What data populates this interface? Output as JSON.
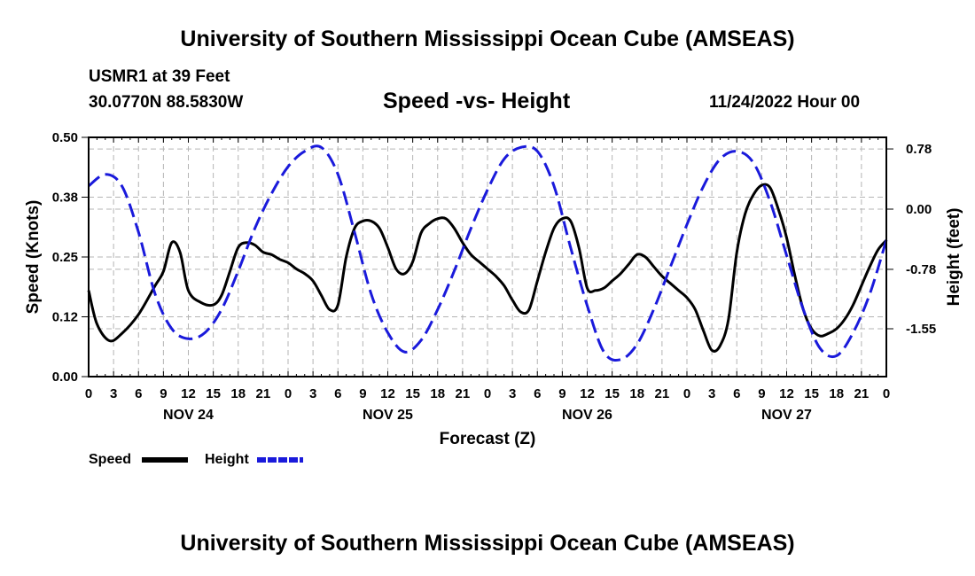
{
  "header": {
    "title": "University of Southern Mississippi Ocean Cube (AMSEAS)",
    "station": "USMR1 at 39 Feet",
    "coords": "30.0770N  88.5830W",
    "subtitle": "Speed -vs- Height",
    "datetime": "11/24/2022 Hour 00"
  },
  "footer": {
    "title": "University of Southern Mississippi Ocean Cube (AMSEAS)"
  },
  "legend": {
    "speed_label": "Speed",
    "height_label": "Height"
  },
  "colors": {
    "speed": "#000000",
    "height": "#1a1adb",
    "grid": "#b4b4b4"
  },
  "chart_data": {
    "type": "line",
    "title": "Speed -vs- Height",
    "xlabel": "Forecast (Z)",
    "ylabel_left": "Speed (Knots)",
    "ylabel_right": "Height (feet)",
    "xlim": [
      0,
      96
    ],
    "ylim_left": [
      0,
      0.5
    ],
    "ylim_right": [
      -2.17,
      0.93
    ],
    "x_tick_labels": [
      "0",
      "3",
      "6",
      "9",
      "12",
      "15",
      "18",
      "21",
      "0",
      "3",
      "6",
      "9",
      "12",
      "15",
      "18",
      "21",
      "0",
      "3",
      "6",
      "9",
      "12",
      "15",
      "18",
      "21",
      "0",
      "3",
      "6",
      "9",
      "12",
      "15",
      "18",
      "21",
      "0"
    ],
    "left_ticks": [
      0,
      0.125,
      0.25,
      0.375,
      0.5
    ],
    "left_tick_labels": [
      "0.00",
      "0.12",
      "0.25",
      "0.38",
      "0.50"
    ],
    "right_ticks": [
      0.78,
      0.0,
      -0.78,
      -1.55
    ],
    "right_tick_labels": [
      "0.78",
      "0.00",
      "-0.78",
      "-1.55"
    ],
    "day_labels": [
      {
        "hour": 12,
        "label": "NOV 24"
      },
      {
        "hour": 36,
        "label": "NOV 25"
      },
      {
        "hour": 60,
        "label": "NOV 26"
      },
      {
        "hour": 84,
        "label": "NOV 27"
      }
    ],
    "series": [
      {
        "name": "Speed",
        "axis": "left",
        "style": "solid",
        "x": [
          0,
          1,
          2.5,
          4,
          6,
          8,
          9,
          10,
          11,
          12,
          13.5,
          15,
          16,
          17,
          18,
          19,
          20,
          21,
          22,
          23,
          24,
          25,
          26,
          27,
          28,
          29,
          30,
          31,
          32,
          33,
          34,
          35,
          36,
          37,
          38,
          39,
          40,
          41,
          42,
          43,
          44,
          45,
          46,
          47,
          48,
          49,
          50,
          51,
          52,
          53,
          54,
          55,
          56,
          57,
          58,
          59,
          60,
          61,
          62,
          63,
          64,
          65,
          66,
          67,
          68,
          69,
          70,
          71,
          72,
          73,
          74,
          75,
          76,
          77,
          78,
          79,
          80,
          81,
          82,
          83,
          84,
          85,
          86,
          87,
          88,
          89,
          90,
          91,
          92,
          93,
          94,
          95,
          96
        ],
        "values": [
          0.18,
          0.11,
          0.075,
          0.09,
          0.13,
          0.19,
          0.22,
          0.28,
          0.26,
          0.18,
          0.155,
          0.15,
          0.17,
          0.22,
          0.27,
          0.28,
          0.275,
          0.26,
          0.255,
          0.245,
          0.238,
          0.225,
          0.215,
          0.2,
          0.17,
          0.14,
          0.15,
          0.25,
          0.31,
          0.325,
          0.325,
          0.31,
          0.27,
          0.225,
          0.215,
          0.24,
          0.3,
          0.32,
          0.33,
          0.33,
          0.31,
          0.28,
          0.255,
          0.24,
          0.225,
          0.21,
          0.19,
          0.16,
          0.135,
          0.14,
          0.2,
          0.26,
          0.31,
          0.33,
          0.325,
          0.27,
          0.185,
          0.18,
          0.185,
          0.2,
          0.215,
          0.235,
          0.255,
          0.25,
          0.23,
          0.21,
          0.195,
          0.18,
          0.165,
          0.14,
          0.095,
          0.055,
          0.065,
          0.12,
          0.26,
          0.34,
          0.38,
          0.4,
          0.395,
          0.35,
          0.29,
          0.21,
          0.14,
          0.1,
          0.085,
          0.09,
          0.1,
          0.12,
          0.15,
          0.19,
          0.23,
          0.265,
          0.285
        ]
      },
      {
        "name": "Height",
        "axis": "right",
        "style": "dashed",
        "x": [
          0,
          2,
          4,
          6,
          8,
          10,
          12,
          14,
          16,
          18,
          20,
          22,
          24,
          26,
          28,
          30,
          32,
          34,
          36,
          38,
          40,
          42,
          44,
          46,
          48,
          50,
          52,
          54,
          56,
          58,
          60,
          62,
          64,
          66,
          68,
          70,
          72,
          74,
          76,
          78,
          80,
          82,
          84,
          86,
          88,
          90,
          92,
          94,
          96
        ],
        "values": [
          0.3,
          0.45,
          0.3,
          -0.3,
          -1.1,
          -1.55,
          -1.68,
          -1.6,
          -1.3,
          -0.8,
          -0.25,
          0.2,
          0.55,
          0.75,
          0.8,
          0.45,
          -0.3,
          -1.1,
          -1.6,
          -1.85,
          -1.7,
          -1.3,
          -0.8,
          -0.25,
          0.25,
          0.65,
          0.8,
          0.75,
          0.3,
          -0.5,
          -1.25,
          -1.85,
          -1.95,
          -1.75,
          -1.3,
          -0.75,
          -0.2,
          0.3,
          0.65,
          0.75,
          0.6,
          0.1,
          -0.6,
          -1.3,
          -1.8,
          -1.9,
          -1.6,
          -1.1,
          -0.4
        ]
      }
    ]
  }
}
